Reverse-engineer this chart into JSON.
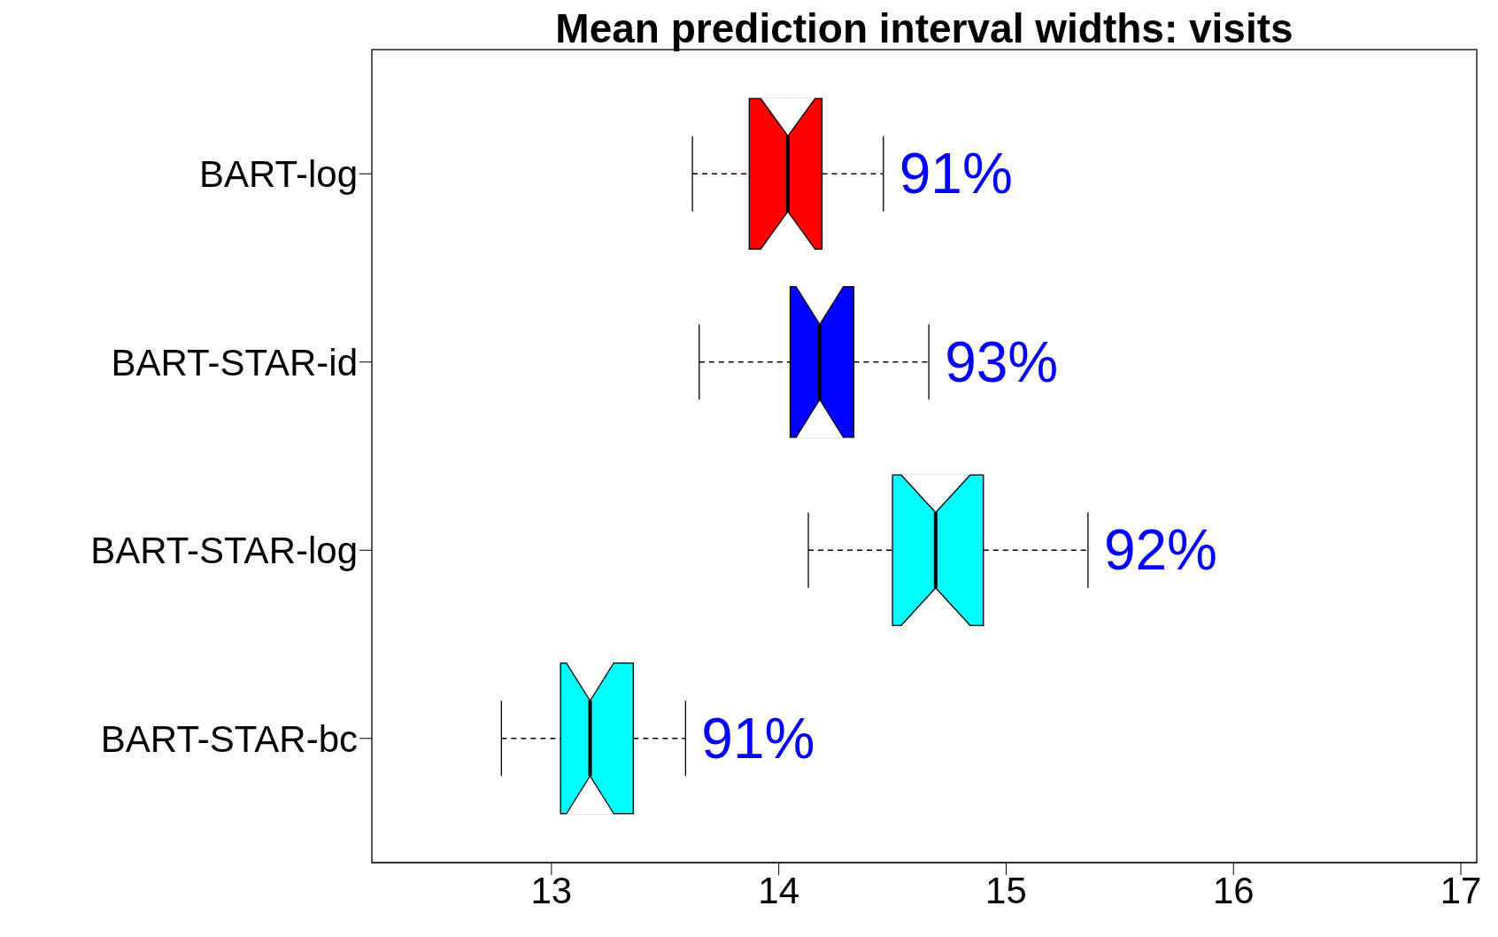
{
  "chart_data": {
    "type": "box",
    "title": "Mean prediction interval widths: visits",
    "orientation": "horizontal",
    "categories": [
      "BART-log",
      "BART-STAR-id",
      "BART-STAR-log",
      "BART-STAR-bc"
    ],
    "colors": [
      "#ff0000",
      "#0000ff",
      "#00ffff",
      "#00ffff"
    ],
    "boxes": [
      {
        "low": 13.62,
        "q1": 13.87,
        "median": 14.04,
        "q3": 14.19,
        "high": 14.46
      },
      {
        "low": 13.65,
        "q1": 14.05,
        "median": 14.18,
        "q3": 14.33,
        "high": 14.66
      },
      {
        "low": 14.13,
        "q1": 14.5,
        "median": 14.69,
        "q3": 14.9,
        "high": 15.36
      },
      {
        "low": 12.78,
        "q1": 13.04,
        "median": 13.17,
        "q3": 13.36,
        "high": 13.59
      }
    ],
    "xlim": [
      12.21,
      17.07
    ],
    "xticks": [
      13,
      14,
      15,
      16,
      17
    ],
    "grid": false,
    "annotations": [
      "91%",
      "93%",
      "92%",
      "91%"
    ]
  }
}
